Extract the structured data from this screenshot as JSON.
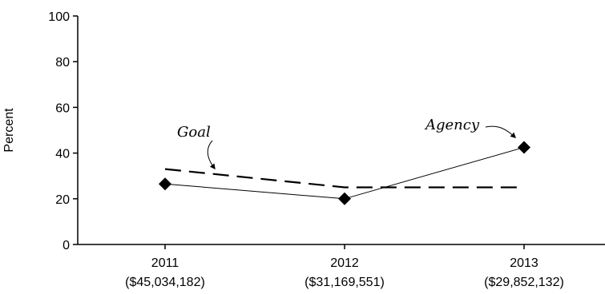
{
  "chart_data": {
    "type": "line",
    "title": "",
    "xlabel": "",
    "ylabel": "Percent",
    "ylim": [
      0,
      100
    ],
    "yticks": [
      "0",
      "20",
      "40",
      "60",
      "80",
      "100"
    ],
    "categories": [
      "2011",
      "2012",
      "2013"
    ],
    "category_sublabels": [
      "($45,034,182)",
      "($31,169,551)",
      "($29,852,132)"
    ],
    "grid": false,
    "legend": "none",
    "series": [
      {
        "name": "Agency",
        "values": [
          26.5,
          20,
          42.5
        ],
        "style": "solid",
        "marker": "diamond",
        "color": "#000000"
      },
      {
        "name": "Goal",
        "values": [
          33,
          25,
          25
        ],
        "style": "dashed",
        "marker": "none",
        "color": "#000000"
      }
    ],
    "annotations": [
      {
        "text": "Goal",
        "series": "Goal"
      },
      {
        "text": "Agency",
        "series": "Agency"
      }
    ]
  }
}
